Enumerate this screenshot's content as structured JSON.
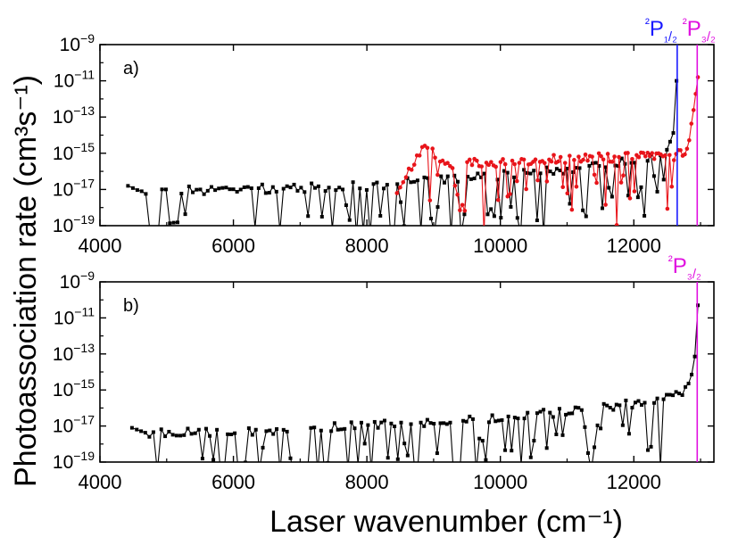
{
  "colors": {
    "black_series": "#000000",
    "red_series": "#e8141a",
    "line_p12": "#1a1aff",
    "line_p32": "#e010e0"
  },
  "ylabel": "Photoassociation rate (cm³s⁻¹)",
  "xlabel": "Laser wavenumber (cm⁻¹)",
  "chart_data": [
    {
      "type": "line",
      "panel_label": "a)",
      "xlim": [
        4000,
        13200
      ],
      "ylim": [
        1e-19,
        1e-09
      ],
      "y_scale": "log",
      "grid": false,
      "x_ticks": [
        4000,
        6000,
        8000,
        10000,
        12000
      ],
      "y_ticks": [
        -19,
        -17,
        -15,
        -13,
        -11,
        -9
      ],
      "markers": [
        {
          "text": "²P₁/₂",
          "x": 12650,
          "color": "#1a1aff"
        },
        {
          "text": "²P₃/₂",
          "x": 12950,
          "color": "#e010e0"
        }
      ],
      "series": [
        {
          "color": "#000000",
          "x_start": 4420,
          "x_end": 12640,
          "points": 160,
          "envelope_log10": [
            [
              4420,
              -16.8
            ],
            [
              4600,
              -17.1
            ],
            [
              6000,
              -17.0
            ],
            [
              8000,
              -16.8
            ],
            [
              10000,
              -16.2
            ],
            [
              11500,
              -15.7
            ],
            [
              12200,
              -15.3
            ],
            [
              12500,
              -14.8
            ],
            [
              12600,
              -13.8
            ],
            [
              12640,
              -11.0
            ]
          ]
        },
        {
          "color": "#e8141a",
          "x_start": 8450,
          "x_end": 12960,
          "points": 130,
          "envelope_log10": [
            [
              8450,
              -17.2
            ],
            [
              8700,
              -15.6
            ],
            [
              8850,
              -14.6
            ],
            [
              9200,
              -15.6
            ],
            [
              10000,
              -15.5
            ],
            [
              11000,
              -15.3
            ],
            [
              12000,
              -15.2
            ],
            [
              12600,
              -15.2
            ],
            [
              12800,
              -14.8
            ],
            [
              12900,
              -12.5
            ],
            [
              12960,
              -10.8
            ]
          ]
        }
      ]
    },
    {
      "type": "line",
      "panel_label": "b)",
      "xlim": [
        4000,
        13200
      ],
      "ylim": [
        1e-19,
        1e-09
      ],
      "y_scale": "log",
      "grid": false,
      "x_ticks": [
        4000,
        6000,
        8000,
        10000,
        12000
      ],
      "y_ticks": [
        -19,
        -17,
        -15,
        -13,
        -11,
        -9
      ],
      "markers": [
        {
          "text": "²P₃/₂",
          "x": 12950,
          "color": "#e010e0"
        }
      ],
      "series": [
        {
          "color": "#000000",
          "x_start": 4480,
          "x_end": 12960,
          "points": 170,
          "envelope_log10": [
            [
              4480,
              -17.1
            ],
            [
              4700,
              -17.4
            ],
            [
              6000,
              -17.3
            ],
            [
              8000,
              -17.0
            ],
            [
              10000,
              -16.6
            ],
            [
              11500,
              -16.0
            ],
            [
              12300,
              -15.6
            ],
            [
              12700,
              -15.2
            ],
            [
              12850,
              -14.5
            ],
            [
              12920,
              -13.0
            ],
            [
              12960,
              -10.3
            ]
          ]
        }
      ]
    }
  ]
}
